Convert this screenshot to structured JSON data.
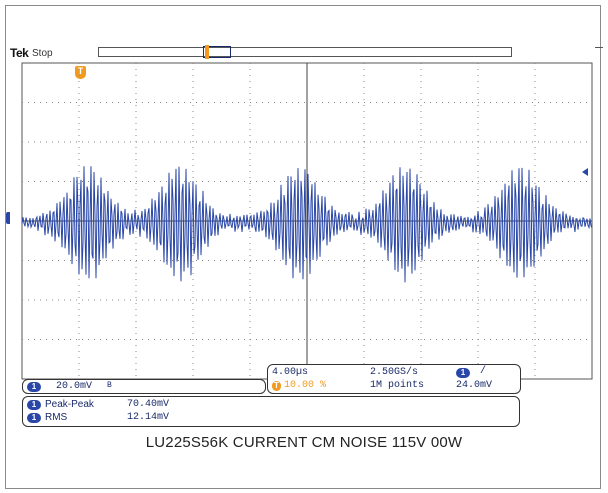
{
  "header": {
    "brand": "Tek",
    "acq_status": "Stop"
  },
  "trigger": {
    "position_marker": "T"
  },
  "channel_readout": {
    "channel": "1",
    "scale": "20.0mV",
    "bandwidth_symbol": "B"
  },
  "timebase_readout": {
    "horizontal_scale": "4.00µs",
    "sample_rate": "2.50GS/s",
    "trigger_chip": "1",
    "trigger_slope": "/",
    "trigger_position_chip": "T",
    "trigger_position": "10.00 %",
    "record_length": "1M points",
    "trigger_level": "24.0mV"
  },
  "measurements": [
    {
      "channel": "1",
      "name": "Peak-Peak",
      "value": "70.40mV"
    },
    {
      "channel": "1",
      "name": "RMS",
      "value": "12.14mV"
    }
  ],
  "caption": "LU225S56K CURRENT CM NOISE 115V 00W",
  "colors": {
    "trace": "#2a47a8",
    "trigger": "#f29a1f",
    "grid": "#9a9a9a"
  },
  "icons": [
    "channel-1-ground-marker",
    "trigger-position-marker",
    "trigger-level-arrow"
  ]
}
